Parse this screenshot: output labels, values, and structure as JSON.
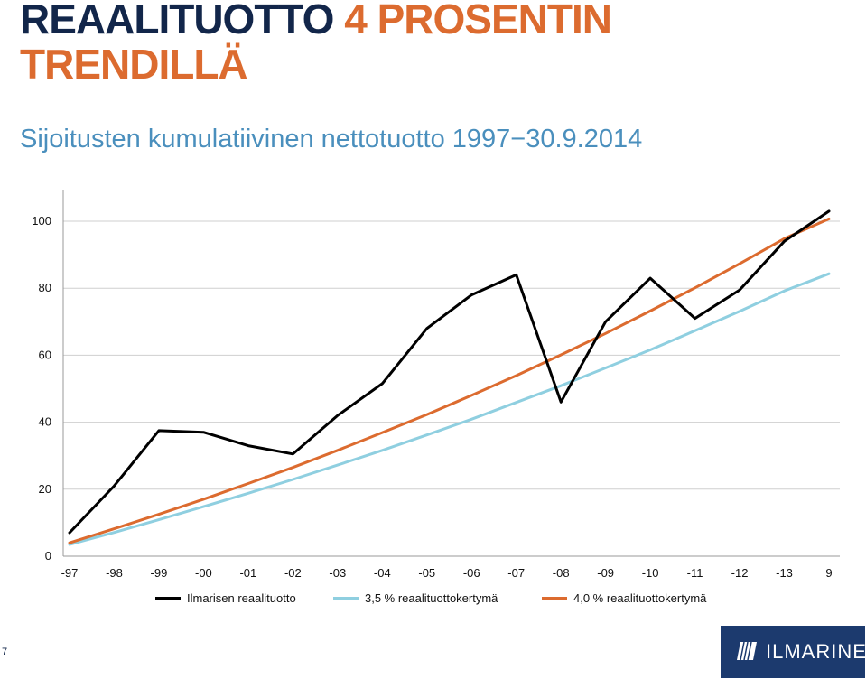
{
  "title": {
    "part1": "REAALITUOTTO",
    "part2": "4 PROSENTIN",
    "part3": "TRENDILLÄ"
  },
  "subtitle": "Sijoitusten kumulatiivinen nettotuotto 1997−30.9.2014",
  "page_number": "7",
  "logo_text": "ILMARINEN",
  "colors": {
    "navy": "#12264a",
    "orange": "#dc6b2f",
    "blue": "#4a8fbd",
    "light_blue": "#8fcfe0",
    "black": "#000000"
  },
  "chart_data": {
    "type": "line",
    "categories": [
      "-97",
      "-98",
      "-99",
      "-00",
      "-01",
      "-02",
      "-03",
      "-04",
      "-05",
      "-06",
      "-07",
      "-08",
      "-09",
      "-10",
      "-11",
      "-12",
      "-13",
      "9"
    ],
    "y_ticks": [
      "0",
      "20",
      "40",
      "60",
      "80",
      "100"
    ],
    "ylim": [
      0,
      100
    ],
    "grid": true,
    "legend_position": "bottom",
    "series": [
      {
        "name": "Ilmarisen reaalituotto",
        "color": "#000000",
        "values": [
          7,
          21,
          37.5,
          37,
          33,
          30.5,
          42,
          51.5,
          68,
          78,
          84,
          46,
          70,
          83,
          71,
          79.5,
          94,
          103
        ]
      },
      {
        "name": "3,5 % reaalituottokertymä",
        "color": "#8fcfe0",
        "values": [
          3.5,
          7.1,
          10.9,
          14.8,
          18.8,
          22.9,
          27.2,
          31.6,
          36.2,
          40.9,
          45.9,
          50.9,
          56.2,
          61.6,
          67.3,
          73.1,
          79.2,
          84.3
        ]
      },
      {
        "name": "4,0 % reaalituottokertymä",
        "color": "#dc6b2f",
        "values": [
          4,
          8.2,
          12.5,
          17,
          21.7,
          26.5,
          31.6,
          36.9,
          42.3,
          48,
          53.9,
          60.1,
          66.5,
          73.2,
          80.1,
          87.3,
          94.8,
          100.7
        ]
      }
    ]
  }
}
